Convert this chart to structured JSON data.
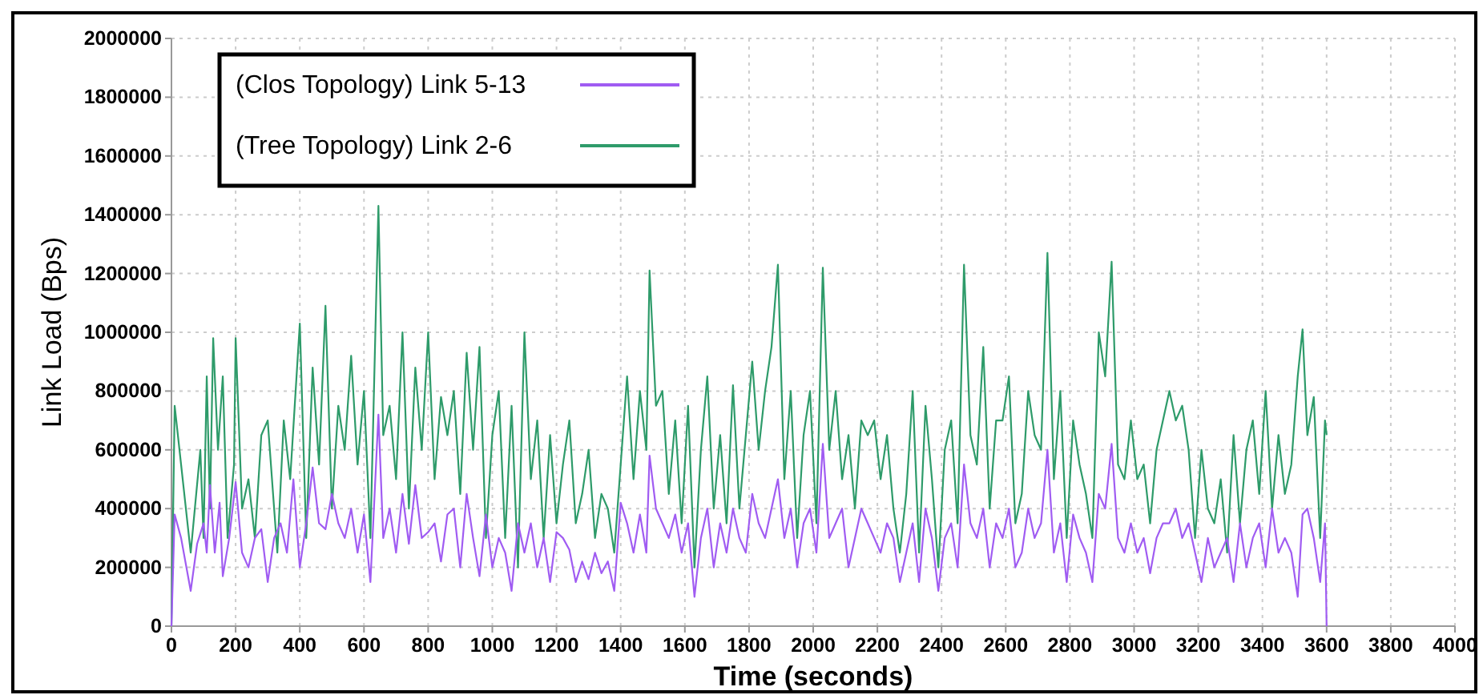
{
  "chart_data": {
    "type": "line",
    "xlabel": "Time (seconds)",
    "ylabel": "Link Load (Bps)",
    "xlim": [
      0,
      4000
    ],
    "xticks": [
      0,
      200,
      400,
      600,
      800,
      1000,
      1200,
      1400,
      1600,
      1800,
      2000,
      2200,
      2400,
      2600,
      2800,
      3000,
      3200,
      3400,
      3600,
      3800,
      4000
    ],
    "ylim": [
      0,
      2000000
    ],
    "yticks": [
      0,
      200000,
      400000,
      600000,
      800000,
      1000000,
      1200000,
      1400000,
      1600000,
      1800000,
      2000000
    ],
    "grid": true,
    "legend": "top left",
    "marker": "none",
    "line_style": "solid",
    "series": [
      {
        "name": "(Tree Topology) Link 2-6",
        "color": "#2e9b6a",
        "x": [
          0,
          10,
          30,
          60,
          90,
          100,
          110,
          120,
          130,
          145,
          160,
          175,
          195,
          200,
          220,
          240,
          260,
          280,
          300,
          330,
          350,
          370,
          400,
          420,
          440,
          460,
          480,
          500,
          520,
          540,
          560,
          580,
          600,
          620,
          645,
          660,
          680,
          700,
          720,
          740,
          760,
          780,
          800,
          820,
          840,
          860,
          880,
          900,
          920,
          940,
          960,
          980,
          1000,
          1020,
          1040,
          1060,
          1080,
          1100,
          1120,
          1140,
          1160,
          1180,
          1200,
          1220,
          1240,
          1260,
          1280,
          1300,
          1320,
          1340,
          1360,
          1380,
          1400,
          1420,
          1440,
          1460,
          1480,
          1490,
          1510,
          1530,
          1550,
          1570,
          1590,
          1610,
          1630,
          1650,
          1670,
          1690,
          1710,
          1730,
          1750,
          1770,
          1790,
          1810,
          1830,
          1850,
          1870,
          1890,
          1910,
          1930,
          1950,
          1970,
          1990,
          2010,
          2030,
          2050,
          2070,
          2090,
          2110,
          2130,
          2150,
          2170,
          2190,
          2210,
          2230,
          2250,
          2270,
          2290,
          2310,
          2330,
          2350,
          2370,
          2390,
          2410,
          2430,
          2450,
          2470,
          2490,
          2510,
          2530,
          2550,
          2570,
          2590,
          2610,
          2630,
          2650,
          2670,
          2690,
          2710,
          2730,
          2750,
          2770,
          2790,
          2810,
          2830,
          2850,
          2870,
          2890,
          2910,
          2930,
          2950,
          2970,
          2990,
          3010,
          3030,
          3050,
          3070,
          3090,
          3110,
          3130,
          3150,
          3170,
          3190,
          3210,
          3230,
          3250,
          3270,
          3290,
          3310,
          3330,
          3350,
          3370,
          3390,
          3410,
          3430,
          3450,
          3470,
          3490,
          3510,
          3525,
          3540,
          3560,
          3580,
          3595,
          3600
        ],
        "values": [
          0,
          750000,
          550000,
          250000,
          600000,
          300000,
          850000,
          400000,
          980000,
          600000,
          850000,
          300000,
          550000,
          980000,
          400000,
          500000,
          300000,
          650000,
          700000,
          250000,
          700000,
          500000,
          1030000,
          300000,
          880000,
          550000,
          1090000,
          400000,
          750000,
          600000,
          920000,
          550000,
          800000,
          300000,
          1430000,
          650000,
          750000,
          500000,
          1000000,
          400000,
          880000,
          600000,
          1000000,
          500000,
          780000,
          650000,
          800000,
          450000,
          930000,
          600000,
          950000,
          300000,
          650000,
          800000,
          300000,
          750000,
          200000,
          1000000,
          500000,
          700000,
          300000,
          650000,
          350000,
          550000,
          700000,
          350000,
          450000,
          600000,
          300000,
          450000,
          400000,
          250000,
          550000,
          850000,
          500000,
          800000,
          600000,
          1210000,
          750000,
          800000,
          450000,
          700000,
          350000,
          750000,
          200000,
          600000,
          850000,
          400000,
          650000,
          350000,
          820000,
          400000,
          650000,
          900000,
          600000,
          800000,
          950000,
          1230000,
          500000,
          800000,
          300000,
          650000,
          800000,
          350000,
          1220000,
          600000,
          800000,
          500000,
          650000,
          400000,
          700000,
          650000,
          700000,
          500000,
          650000,
          400000,
          250000,
          450000,
          800000,
          250000,
          750000,
          500000,
          200000,
          600000,
          700000,
          350000,
          1230000,
          650000,
          550000,
          950000,
          400000,
          700000,
          700000,
          850000,
          350000,
          450000,
          800000,
          650000,
          600000,
          1270000,
          500000,
          800000,
          300000,
          700000,
          550000,
          450000,
          300000,
          1000000,
          850000,
          1240000,
          550000,
          500000,
          700000,
          500000,
          550000,
          350000,
          600000,
          700000,
          800000,
          700000,
          750000,
          600000,
          300000,
          600000,
          400000,
          350000,
          500000,
          250000,
          650000,
          350000,
          600000,
          700000,
          450000,
          800000,
          400000,
          650000,
          450000,
          550000,
          850000,
          1010000,
          650000,
          780000,
          300000,
          700000,
          650000
        ]
      },
      {
        "name": "(Clos Topology) Link 5-13",
        "color": "#a05cf2",
        "x": [
          0,
          10,
          30,
          60,
          80,
          100,
          110,
          120,
          135,
          150,
          160,
          180,
          200,
          220,
          240,
          260,
          280,
          300,
          320,
          340,
          360,
          380,
          400,
          420,
          440,
          460,
          480,
          500,
          520,
          540,
          560,
          580,
          600,
          620,
          645,
          660,
          680,
          700,
          720,
          740,
          760,
          780,
          800,
          820,
          840,
          860,
          880,
          900,
          920,
          940,
          960,
          980,
          1000,
          1020,
          1040,
          1060,
          1080,
          1100,
          1120,
          1140,
          1160,
          1180,
          1200,
          1220,
          1240,
          1260,
          1280,
          1300,
          1320,
          1340,
          1360,
          1380,
          1400,
          1420,
          1440,
          1460,
          1480,
          1490,
          1510,
          1530,
          1550,
          1570,
          1590,
          1610,
          1630,
          1650,
          1670,
          1690,
          1710,
          1730,
          1750,
          1770,
          1790,
          1810,
          1830,
          1850,
          1870,
          1890,
          1910,
          1930,
          1950,
          1970,
          1990,
          2010,
          2030,
          2050,
          2070,
          2090,
          2110,
          2130,
          2150,
          2170,
          2190,
          2210,
          2230,
          2250,
          2270,
          2290,
          2310,
          2330,
          2350,
          2370,
          2390,
          2410,
          2430,
          2450,
          2470,
          2490,
          2510,
          2530,
          2550,
          2570,
          2590,
          2610,
          2630,
          2650,
          2670,
          2690,
          2710,
          2730,
          2750,
          2770,
          2790,
          2810,
          2830,
          2850,
          2870,
          2890,
          2910,
          2930,
          2950,
          2970,
          2990,
          3010,
          3030,
          3050,
          3070,
          3090,
          3110,
          3130,
          3150,
          3170,
          3190,
          3210,
          3230,
          3250,
          3270,
          3290,
          3310,
          3330,
          3350,
          3370,
          3390,
          3410,
          3430,
          3450,
          3470,
          3490,
          3510,
          3525,
          3540,
          3560,
          3580,
          3595,
          3600
        ],
        "values": [
          0,
          380000,
          300000,
          120000,
          280000,
          350000,
          250000,
          480000,
          250000,
          420000,
          170000,
          300000,
          490000,
          250000,
          200000,
          300000,
          330000,
          150000,
          300000,
          350000,
          250000,
          500000,
          200000,
          350000,
          540000,
          350000,
          330000,
          450000,
          350000,
          300000,
          400000,
          250000,
          380000,
          150000,
          720000,
          300000,
          400000,
          250000,
          450000,
          280000,
          480000,
          300000,
          320000,
          350000,
          220000,
          380000,
          400000,
          200000,
          450000,
          300000,
          170000,
          380000,
          200000,
          300000,
          250000,
          120000,
          350000,
          250000,
          350000,
          200000,
          300000,
          150000,
          320000,
          300000,
          260000,
          150000,
          220000,
          160000,
          250000,
          180000,
          220000,
          120000,
          420000,
          350000,
          250000,
          380000,
          250000,
          580000,
          400000,
          350000,
          300000,
          380000,
          250000,
          350000,
          100000,
          300000,
          400000,
          200000,
          350000,
          250000,
          400000,
          300000,
          250000,
          450000,
          350000,
          300000,
          400000,
          500000,
          300000,
          400000,
          200000,
          350000,
          400000,
          250000,
          620000,
          300000,
          350000,
          400000,
          200000,
          300000,
          400000,
          350000,
          300000,
          250000,
          350000,
          300000,
          150000,
          250000,
          350000,
          150000,
          400000,
          300000,
          120000,
          300000,
          350000,
          200000,
          550000,
          350000,
          300000,
          400000,
          200000,
          350000,
          300000,
          400000,
          200000,
          250000,
          400000,
          300000,
          350000,
          600000,
          250000,
          350000,
          150000,
          380000,
          300000,
          250000,
          150000,
          450000,
          400000,
          620000,
          300000,
          250000,
          350000,
          250000,
          300000,
          180000,
          300000,
          350000,
          350000,
          400000,
          300000,
          350000,
          250000,
          150000,
          300000,
          200000,
          250000,
          300000,
          150000,
          350000,
          200000,
          300000,
          350000,
          200000,
          400000,
          250000,
          300000,
          250000,
          100000,
          380000,
          400000,
          300000,
          150000,
          350000,
          0
        ]
      }
    ]
  }
}
